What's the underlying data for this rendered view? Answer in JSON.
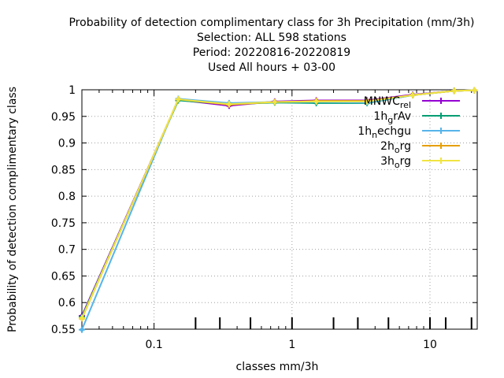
{
  "chart_data": {
    "type": "line",
    "title_lines": [
      "Probability of detection complimentary class  for 3h Precipitation (mm/3h)",
      "Selection: ALL    598 stations",
      "Period: 20220816-20220819",
      "Used  All hours  + 03-00"
    ],
    "xlabel": "classes mm/3h",
    "ylabel": "Probability of detection complimentary class",
    "x_scale": "log",
    "xlim": [
      0.03,
      22
    ],
    "ylim": [
      0.55,
      1.0
    ],
    "x_tick_labels": [
      {
        "value": 0.1,
        "label": "0.1"
      },
      {
        "value": 1,
        "label": "1"
      },
      {
        "value": 10,
        "label": "10"
      }
    ],
    "y_tick_labels": [
      "0.55",
      "0.6",
      "0.65",
      "0.7",
      "0.75",
      "0.8",
      "0.85",
      "0.9",
      "0.95",
      "1"
    ],
    "y_ticks": [
      0.55,
      0.6,
      0.65,
      0.7,
      0.75,
      0.8,
      0.85,
      0.9,
      0.95,
      1.0
    ],
    "class_boundary_ticks": [
      0.2,
      0.3,
      0.5,
      1,
      2,
      3,
      5,
      10,
      13,
      20
    ],
    "grid": true,
    "legend_position": "top-right",
    "x": [
      0.03,
      0.15,
      0.35,
      0.75,
      1.5,
      3.5,
      7.5,
      15,
      21
    ],
    "series": [
      {
        "name": "MNWC",
        "name_sub": "rel",
        "color": "#9400d3",
        "marker": "plus",
        "values": [
          0.575,
          0.981,
          0.97,
          0.978,
          0.98,
          0.98,
          0.991,
          0.998,
          0.999
        ]
      },
      {
        "name": "1h",
        "name_sub": "g",
        "name_rest": "rAv",
        "color": "#009e73",
        "marker": "plus",
        "values": [
          0.573,
          0.98,
          0.973,
          0.976,
          0.975,
          0.975,
          0.99,
          0.998,
          0.999
        ]
      },
      {
        "name": "1h",
        "name_sub": "n",
        "name_rest": "echgu",
        "color": "#56b4e9",
        "marker": "plus",
        "values": [
          0.549,
          0.983,
          0.975,
          0.977,
          0.977,
          0.976,
          0.99,
          0.998,
          0.999
        ]
      },
      {
        "name": "2h",
        "name_sub": "o",
        "name_rest": "rg",
        "color": "#e69f00",
        "marker": "plus",
        "values": [
          0.57,
          0.982,
          0.972,
          0.977,
          0.979,
          0.979,
          0.99,
          0.998,
          0.999
        ]
      },
      {
        "name": "3h",
        "name_sub": "o",
        "name_rest": "rg",
        "color": "#f0e442",
        "marker": "plus",
        "values": [
          0.571,
          0.982,
          0.973,
          0.977,
          0.978,
          0.978,
          0.99,
          0.998,
          0.999
        ]
      }
    ]
  }
}
